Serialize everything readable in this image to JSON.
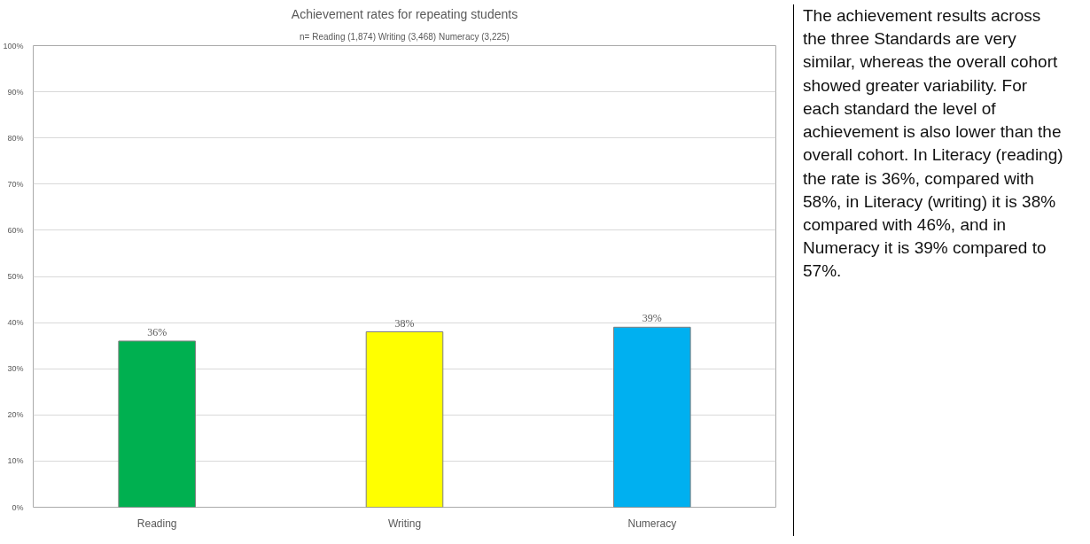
{
  "chart_data": {
    "type": "bar",
    "title": "Achievement rates for repeating students",
    "subtitle": "n= Reading (1,874) Writing (3,468) Numeracy (3,225)",
    "categories": [
      "Reading",
      "Writing",
      "Numeracy"
    ],
    "values": [
      36,
      38,
      39
    ],
    "colors": [
      "#00b050",
      "#ffff00",
      "#00b0f0"
    ],
    "value_labels": [
      "36%",
      "38%",
      "39%"
    ],
    "ylim": [
      0,
      100
    ],
    "yticks": [
      {
        "value": 0,
        "label": "0%"
      },
      {
        "value": 10,
        "label": "10%"
      },
      {
        "value": 20,
        "label": "20%"
      },
      {
        "value": 30,
        "label": "30%"
      },
      {
        "value": 40,
        "label": "40%"
      },
      {
        "value": 50,
        "label": "50%"
      },
      {
        "value": 60,
        "label": "60%"
      },
      {
        "value": 70,
        "label": "70%"
      },
      {
        "value": 80,
        "label": "80%"
      },
      {
        "value": 90,
        "label": "90%"
      },
      {
        "value": 100,
        "label": "100%"
      }
    ],
    "grid": "y",
    "annotations": [
      "The achievement results across the three Standards are very similar, whereas the overall cohort showed greater variability. For each standard the level of achievement is also lower than the overall cohort. In Literacy (reading) the rate is 36%, compared with 58%, in Literacy (writing) it is 38% compared with 46%, and in Numeracy it is 39% compared to 57%."
    ]
  }
}
